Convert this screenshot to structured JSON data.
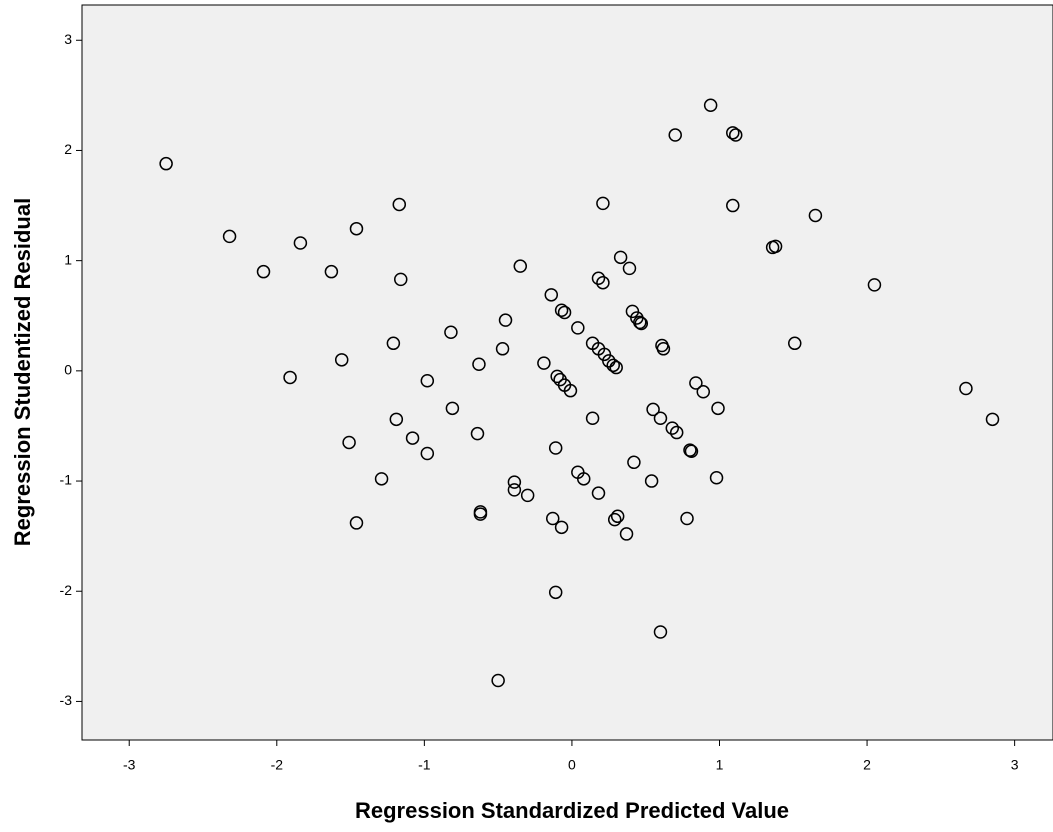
{
  "chart_data": {
    "type": "scatter",
    "xlabel": "Regression Standardized Predicted Value",
    "ylabel": "Regression Studentized Residual",
    "x": [
      -2.75,
      -2.32,
      -2.09,
      -1.84,
      -1.63,
      -1.46,
      -1.17,
      -1.16,
      -1.91,
      -1.56,
      -1.21,
      -0.82,
      -0.98,
      -1.19,
      -1.51,
      -1.08,
      -0.98,
      -1.29,
      -1.46,
      -0.81,
      -0.64,
      -0.63,
      -0.62,
      -0.62,
      -0.45,
      -0.35,
      -0.47,
      -0.19,
      -0.39,
      -0.39,
      -0.3,
      -0.14,
      -0.07,
      -0.05,
      0.04,
      -0.1,
      -0.08,
      -0.05,
      -0.01,
      -0.11,
      -0.13,
      -0.07,
      -0.11,
      -0.5,
      0.04,
      0.08,
      0.14,
      0.14,
      0.18,
      0.22,
      0.25,
      0.28,
      0.3,
      0.18,
      0.18,
      0.21,
      0.21,
      0.29,
      0.31,
      0.37,
      0.33,
      0.39,
      0.41,
      0.44,
      0.46,
      0.47,
      0.42,
      0.54,
      0.55,
      0.6,
      0.61,
      0.62,
      0.6,
      0.68,
      0.71,
      0.8,
      0.81,
      0.84,
      0.89,
      0.78,
      0.99,
      0.98,
      0.7,
      0.94,
      1.09,
      1.11,
      1.09,
      1.36,
      1.38,
      1.51,
      1.65,
      2.05,
      2.67,
      2.85
    ],
    "values": [
      1.88,
      1.22,
      0.9,
      1.16,
      0.9,
      1.29,
      1.51,
      0.83,
      -0.06,
      0.1,
      0.25,
      0.35,
      -0.09,
      -0.44,
      -0.65,
      -0.61,
      -0.75,
      -0.98,
      -1.38,
      -0.34,
      -0.57,
      0.06,
      -1.28,
      -1.3,
      0.46,
      0.95,
      0.2,
      0.07,
      -1.01,
      -1.08,
      -1.13,
      0.69,
      0.55,
      0.53,
      0.39,
      -0.05,
      -0.08,
      -0.13,
      -0.18,
      -0.7,
      -1.34,
      -1.42,
      -2.01,
      -2.81,
      -0.92,
      -0.98,
      -0.43,
      0.25,
      0.2,
      0.15,
      0.09,
      0.05,
      0.03,
      -1.11,
      0.84,
      0.8,
      1.52,
      -1.35,
      -1.32,
      -1.48,
      1.03,
      0.93,
      0.54,
      0.48,
      0.44,
      0.43,
      -0.83,
      -1.0,
      -0.35,
      -0.43,
      0.23,
      0.2,
      -2.37,
      -0.52,
      -0.56,
      -0.72,
      -0.73,
      -0.11,
      -0.19,
      -1.34,
      -0.34,
      -0.97,
      2.14,
      2.41,
      2.16,
      2.14,
      1.5,
      1.12,
      1.13,
      0.25,
      1.41,
      0.78,
      -0.16,
      -0.44
    ],
    "xlim": [
      -3.32,
      3.26
    ],
    "ylim": [
      -3.35,
      3.32
    ],
    "xticks": [
      -3,
      -2,
      -1,
      0,
      1,
      2,
      3
    ],
    "yticks": [
      -3,
      -2,
      -1,
      0,
      1,
      2,
      3
    ],
    "color": "#000000",
    "background": "#f0f0f0"
  }
}
